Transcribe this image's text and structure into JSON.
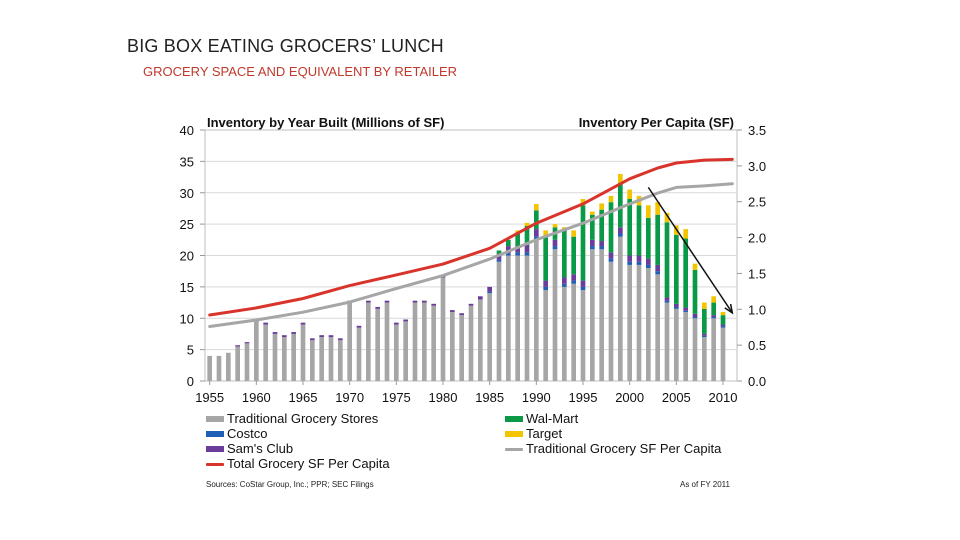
{
  "slide": {
    "title": "BIG BOX EATING GROCERS’ LUNCH",
    "subtitle": "GROCERY SPACE AND EQUIVALENT BY RETAILER"
  },
  "chart_data": {
    "type": "bar",
    "left_title": "Inventory by Year Built (Millions of SF)",
    "right_title": "Inventory Per Capita (SF)",
    "ylim_left": [
      0,
      40
    ],
    "yticks_left": [
      0,
      5,
      10,
      15,
      20,
      25,
      30,
      35,
      40
    ],
    "ylim_right": [
      0,
      3.5
    ],
    "yticks_right": [
      "0.0",
      "0.5",
      "1.0",
      "1.5",
      "2.0",
      "2.5",
      "3.0",
      "3.5"
    ],
    "xticks": [
      "1955",
      "1960",
      "1965",
      "1970",
      "1975",
      "1980",
      "1985",
      "1990",
      "1995",
      "2000",
      "2005",
      "2010"
    ],
    "grid": "horizontal",
    "legend_position": "bottom",
    "years": [
      1955,
      1956,
      1957,
      1958,
      1959,
      1960,
      1961,
      1962,
      1963,
      1964,
      1965,
      1966,
      1967,
      1968,
      1969,
      1970,
      1971,
      1972,
      1973,
      1974,
      1975,
      1976,
      1977,
      1978,
      1979,
      1980,
      1981,
      1982,
      1983,
      1984,
      1985,
      1986,
      1987,
      1988,
      1989,
      1990,
      1991,
      1992,
      1993,
      1994,
      1995,
      1996,
      1997,
      1998,
      1999,
      2000,
      2001,
      2002,
      2003,
      2004,
      2005,
      2006,
      2007,
      2008,
      2009,
      2010
    ],
    "series": [
      {
        "name": "Traditional Grocery Stores",
        "color": "#a6a6a6",
        "values": [
          4,
          4,
          4.5,
          5.5,
          6,
          9.5,
          9,
          7.5,
          7,
          7.5,
          9,
          6.5,
          7,
          7,
          6.5,
          12.5,
          8.5,
          12.5,
          11.5,
          12.5,
          9,
          9.5,
          12.5,
          12.5,
          12,
          16.5,
          11,
          10.5,
          12,
          13,
          14,
          19,
          20,
          20,
          20,
          22.5,
          14.5,
          21,
          15,
          15.5,
          14.5,
          21,
          21,
          19,
          23,
          18.5,
          18.5,
          18,
          17,
          12.5,
          11.5,
          11,
          10,
          7,
          10,
          8.5
        ]
      },
      {
        "name": "Costco",
        "color": "#1f5fb5",
        "values": [
          0,
          0,
          0,
          0,
          0,
          0,
          0,
          0,
          0,
          0,
          0,
          0,
          0,
          0,
          0,
          0,
          0,
          0,
          0,
          0,
          0,
          0,
          0,
          0,
          0,
          0,
          0,
          0,
          0,
          0,
          0.2,
          0.3,
          0.3,
          0.5,
          0.5,
          0.5,
          0.5,
          0.5,
          0.5,
          0.5,
          0.5,
          0.5,
          0.5,
          0.5,
          0.5,
          0.5,
          0.5,
          0.5,
          0.5,
          0.3,
          0.3,
          0.2,
          0.2,
          0.2,
          0.2,
          0.2
        ]
      },
      {
        "name": "Sam's Club",
        "color": "#6a3d9a",
        "values": [
          0,
          0,
          0,
          0.2,
          0.2,
          0.3,
          0.3,
          0.3,
          0.3,
          0.3,
          0.3,
          0.3,
          0.3,
          0.3,
          0.3,
          0.3,
          0.3,
          0.3,
          0.3,
          0.3,
          0.3,
          0.3,
          0.3,
          0.3,
          0.3,
          0.3,
          0.3,
          0.3,
          0.3,
          0.5,
          0.8,
          1,
          1.2,
          1,
          1.2,
          1.2,
          1,
          1,
          1,
          1,
          1,
          1,
          0.8,
          1,
          1,
          1,
          1,
          1,
          1,
          0.5,
          0.5,
          0.5,
          0.5,
          0.3,
          0.3,
          0.3
        ]
      },
      {
        "name": "Wal-Mart",
        "color": "#0a9a47",
        "values": [
          0,
          0,
          0,
          0,
          0,
          0,
          0,
          0,
          0,
          0,
          0,
          0,
          0,
          0,
          0,
          0,
          0,
          0,
          0,
          0,
          0,
          0,
          0,
          0,
          0,
          0,
          0,
          0,
          0,
          0,
          0,
          0.5,
          1,
          2,
          3,
          3,
          7,
          2,
          7.5,
          6,
          12,
          4,
          5,
          8,
          7,
          9,
          8,
          6.5,
          8,
          12,
          11,
          11,
          7,
          4,
          2,
          1.5
        ]
      },
      {
        "name": "Target",
        "color": "#f2c500",
        "values": [
          0,
          0,
          0,
          0,
          0,
          0,
          0,
          0,
          0,
          0,
          0,
          0,
          0,
          0,
          0,
          0,
          0,
          0,
          0,
          0,
          0,
          0,
          0,
          0,
          0,
          0,
          0,
          0,
          0,
          0,
          0,
          0,
          0,
          0.5,
          0.5,
          1,
          1,
          0.5,
          0.5,
          1,
          1,
          0.5,
          1,
          1,
          1.5,
          1.5,
          1.5,
          2,
          2,
          1.5,
          1.5,
          1.5,
          1,
          1,
          1,
          0.5
        ]
      }
    ],
    "lines": [
      {
        "name": "Total Grocery SF Per Capita",
        "color": "#d9342b",
        "axis": "right",
        "x": [
          1955,
          1960,
          1965,
          1970,
          1975,
          1980,
          1985,
          1990,
          1995,
          2000,
          2003,
          2005,
          2008,
          2011
        ],
        "y": [
          0.92,
          1.02,
          1.15,
          1.33,
          1.48,
          1.63,
          1.85,
          2.2,
          2.47,
          2.82,
          2.97,
          3.04,
          3.08,
          3.09
        ]
      },
      {
        "name": "Traditional Grocery SF Per Capita",
        "color": "#a6a6a6",
        "axis": "right",
        "x": [
          1955,
          1960,
          1965,
          1970,
          1975,
          1980,
          1985,
          1990,
          1995,
          2000,
          2003,
          2005,
          2008,
          2011
        ],
        "y": [
          0.76,
          0.85,
          0.96,
          1.1,
          1.29,
          1.47,
          1.7,
          1.97,
          2.2,
          2.47,
          2.62,
          2.7,
          2.72,
          2.75
        ]
      }
    ],
    "annotation": {
      "type": "trend-arrow",
      "from": [
        2002,
        2.7
      ],
      "to": [
        2011,
        0.95
      ]
    }
  },
  "legend": {
    "traditional": "Traditional Grocery Stores",
    "costco": "Costco",
    "sams": "Sam's Club",
    "total_line": "Total Grocery SF Per Capita",
    "walmart": "Wal-Mart",
    "target": "Target",
    "traditional_line": "Traditional Grocery SF Per Capita"
  },
  "footer": {
    "sources": "Sources: CoStar Group, Inc.; PPR; SEC Filings",
    "asof": "As of FY 2011"
  },
  "colors": {
    "traditional": "#a6a6a6",
    "costco": "#1f5fb5",
    "sams": "#6a3d9a",
    "walmart": "#0a9a47",
    "target": "#f2c500",
    "total_line": "#d9342b"
  }
}
